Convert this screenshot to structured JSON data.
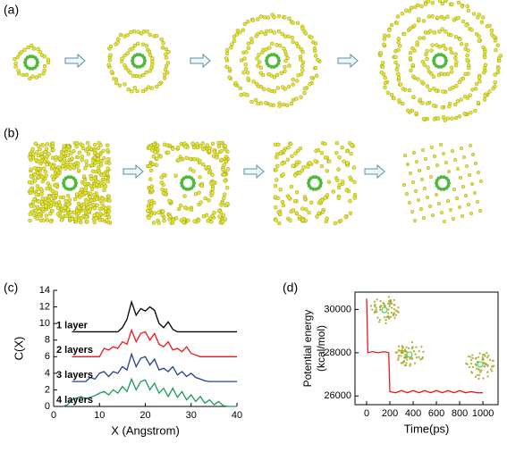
{
  "panel_labels": [
    "(a)",
    "(b)",
    "(c)",
    "(d)"
  ],
  "chart_data": [
    {
      "type": "line",
      "xlabel": "X (Angstrom)",
      "ylabel": "C(X)",
      "x": [
        0,
        1,
        2,
        3,
        4,
        5,
        6,
        7,
        8,
        9,
        10,
        11,
        12,
        13,
        14,
        15,
        16,
        17,
        18,
        19,
        20,
        21,
        22,
        23,
        24,
        25,
        26,
        27,
        28,
        29,
        30,
        31,
        32,
        33,
        34,
        35,
        36,
        37,
        38,
        39,
        40
      ],
      "xlim": [
        0,
        40
      ],
      "xticks": [
        0,
        10,
        20,
        30,
        40
      ],
      "ylim": [
        0,
        14
      ],
      "yticks": [
        0,
        2,
        4,
        6,
        8,
        10,
        12,
        14
      ],
      "series": [
        {
          "name": "1 layer",
          "color": "#000000",
          "values": [
            null,
            null,
            null,
            null,
            9,
            9,
            9,
            9,
            9,
            9,
            9,
            9,
            9,
            9,
            9,
            9.5,
            10.5,
            12.6,
            11,
            11.8,
            11.5,
            12,
            11.6,
            10,
            9.5,
            10.2,
            9.3,
            9,
            9,
            9,
            9,
            9,
            9,
            9,
            9,
            9,
            9,
            9,
            9,
            9,
            9
          ]
        },
        {
          "name": "2 layers",
          "color": "#e8191c",
          "values": [
            null,
            null,
            null,
            null,
            6,
            6,
            6,
            6,
            6,
            6,
            6,
            7,
            6.8,
            7.2,
            7,
            7.8,
            7.5,
            9.2,
            7.8,
            8.8,
            9,
            8,
            8.8,
            7.5,
            7.2,
            7.8,
            6.8,
            7,
            6.6,
            7.2,
            6.4,
            6.2,
            6,
            6,
            6,
            6,
            6,
            6,
            6,
            6,
            6
          ]
        },
        {
          "name": "3 layers",
          "color": "#23408e",
          "values": [
            null,
            null,
            null,
            null,
            3,
            3,
            3,
            3,
            3.5,
            3.3,
            4,
            4.2,
            3.6,
            4.2,
            4,
            4.8,
            4.4,
            6.3,
            4.8,
            5.8,
            6,
            5,
            5.7,
            4.4,
            4.6,
            4.2,
            4.8,
            3.8,
            4.2,
            3.6,
            4,
            3.5,
            3.3,
            3.1,
            3,
            3,
            3,
            3,
            3,
            3,
            3
          ]
        },
        {
          "name": "4 layers",
          "color": "#1a9a5a",
          "values": [
            null,
            null,
            0,
            0.2,
            0.8,
            1,
            1.2,
            0.9,
            1.1,
            1.3,
            1.6,
            1.8,
            1.4,
            2,
            1.6,
            2.4,
            1.8,
            3.3,
            2,
            3,
            3.2,
            2,
            2.8,
            1.6,
            2.2,
            1.2,
            2.2,
            1.1,
            1.8,
            0.8,
            1.4,
            0.6,
            1.2,
            0.4,
            0.8,
            0.2,
            0.6,
            0.1,
            0,
            0,
            0
          ]
        }
      ]
    },
    {
      "type": "line",
      "xlabel": "Time(ps)",
      "ylabel": [
        "Potential energy",
        "(kcal/mol)"
      ],
      "x": [
        0,
        10,
        50,
        100,
        150,
        190,
        200,
        250,
        300,
        350,
        400,
        450,
        500,
        550,
        600,
        650,
        700,
        750,
        800,
        850,
        900,
        950,
        1000
      ],
      "xlim": [
        -100,
        1130
      ],
      "xticks": [
        0,
        200,
        400,
        600,
        800,
        1000
      ],
      "ylim": [
        25600,
        30800
      ],
      "yticks": [
        26000,
        28000,
        30000
      ],
      "series": [
        {
          "name": "energy",
          "color": "#e8191c",
          "values": [
            30500,
            28000,
            28050,
            28000,
            28050,
            28000,
            26200,
            26150,
            26250,
            26150,
            26250,
            26150,
            26250,
            26150,
            26250,
            26150,
            26250,
            26150,
            26250,
            26150,
            26200,
            26150,
            26150
          ]
        }
      ]
    }
  ]
}
